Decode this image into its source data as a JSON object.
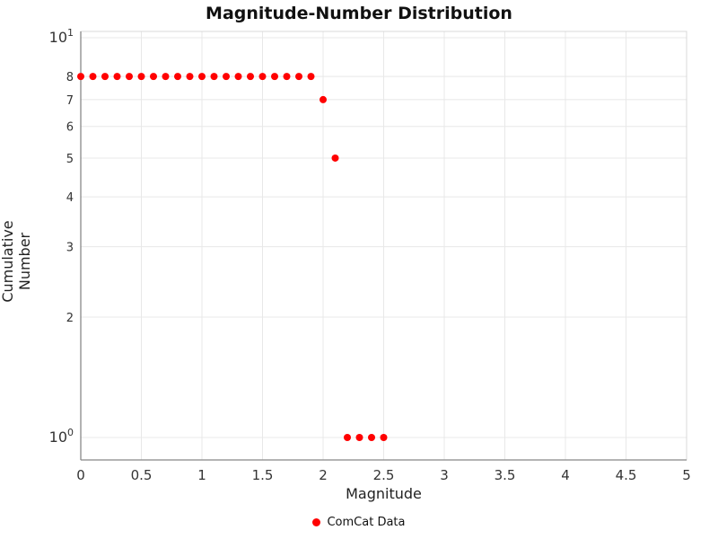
{
  "chart_data": {
    "type": "scatter",
    "title": "Magnitude-Number Distribution",
    "xlabel": "Magnitude",
    "ylabel": "Cumulative Number",
    "xlim": [
      0,
      5
    ],
    "ylim": [
      1,
      10
    ],
    "yscale": "log",
    "grid": true,
    "legend_position": "bottom-center",
    "legend": [
      {
        "label": "ComCat Data",
        "color": "#ff0000",
        "marker": "circle"
      }
    ],
    "x_ticks": [
      {
        "v": 0,
        "label": "0"
      },
      {
        "v": 0.5,
        "label": "0.5"
      },
      {
        "v": 1,
        "label": "1"
      },
      {
        "v": 1.5,
        "label": "1.5"
      },
      {
        "v": 2,
        "label": "2"
      },
      {
        "v": 2.5,
        "label": "2.5"
      },
      {
        "v": 3,
        "label": "3"
      },
      {
        "v": 3.5,
        "label": "3.5"
      },
      {
        "v": 4,
        "label": "4"
      },
      {
        "v": 4.5,
        "label": "4.5"
      },
      {
        "v": 5,
        "label": "5"
      }
    ],
    "y_ticks": [
      {
        "v": 10,
        "label": "10",
        "exp": "1"
      },
      {
        "v": 8,
        "label": "8"
      },
      {
        "v": 7,
        "label": "7"
      },
      {
        "v": 6,
        "label": "6"
      },
      {
        "v": 5,
        "label": "5"
      },
      {
        "v": 4,
        "label": "4"
      },
      {
        "v": 3,
        "label": "3"
      },
      {
        "v": 2,
        "label": "2"
      },
      {
        "v": 1,
        "label": "10",
        "exp": "0"
      }
    ],
    "series": [
      {
        "name": "ComCat Data",
        "color": "#ff0000",
        "marker": "circle",
        "points": [
          [
            0.0,
            8
          ],
          [
            0.1,
            8
          ],
          [
            0.2,
            8
          ],
          [
            0.3,
            8
          ],
          [
            0.4,
            8
          ],
          [
            0.5,
            8
          ],
          [
            0.6,
            8
          ],
          [
            0.7,
            8
          ],
          [
            0.8,
            8
          ],
          [
            0.9,
            8
          ],
          [
            1.0,
            8
          ],
          [
            1.1,
            8
          ],
          [
            1.2,
            8
          ],
          [
            1.3,
            8
          ],
          [
            1.4,
            8
          ],
          [
            1.5,
            8
          ],
          [
            1.6,
            8
          ],
          [
            1.7,
            8
          ],
          [
            1.8,
            8
          ],
          [
            1.9,
            8
          ],
          [
            2.0,
            7
          ],
          [
            2.1,
            5
          ],
          [
            2.2,
            1
          ],
          [
            2.3,
            1
          ],
          [
            2.4,
            1
          ],
          [
            2.5,
            1
          ]
        ]
      }
    ],
    "colors": {
      "grid": "#e8e8e8",
      "axis": "#888888",
      "frame": "#d8d8d8",
      "tick_text": "#333333"
    }
  }
}
